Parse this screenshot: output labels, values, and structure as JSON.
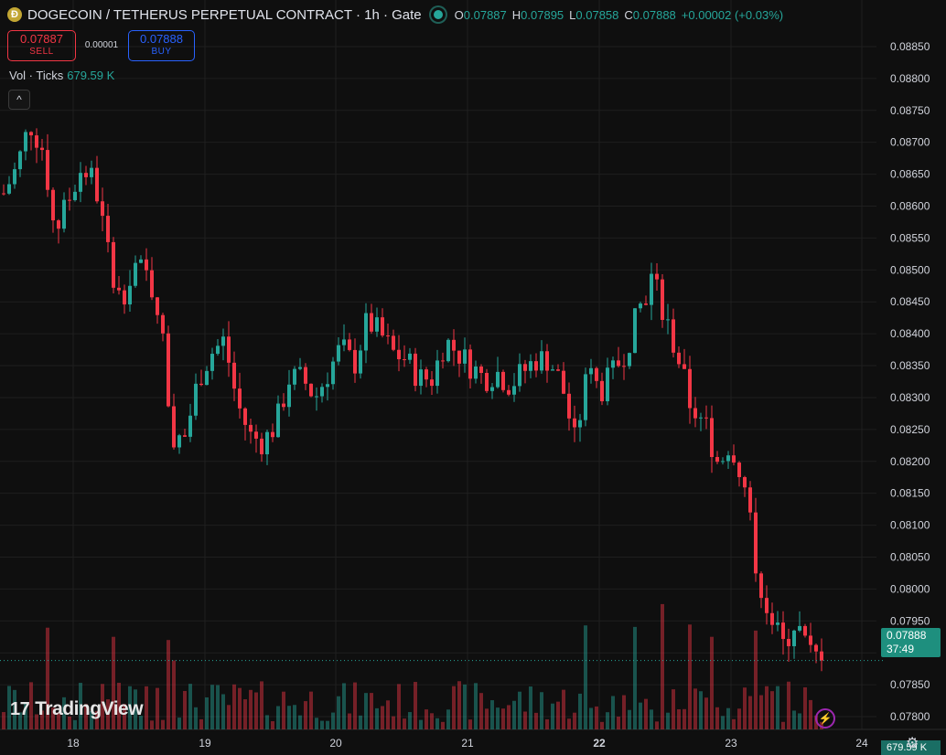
{
  "header": {
    "coin_icon": "Ð",
    "title": "DOGECOIN / TETHERUS PERPETUAL CONTRACT · 1h · Gate",
    "status": "live-dot",
    "ohlc": {
      "o_label": "O",
      "o": "0.07887",
      "h_label": "H",
      "h": "0.07895",
      "l_label": "L",
      "l": "0.07858",
      "c_label": "C",
      "c": "0.07888",
      "change": "+0.00002 (+0.03%)"
    }
  },
  "trade": {
    "sell_price": "0.07887",
    "sell_label": "SELL",
    "spread": "0.00001",
    "buy_price": "0.07888",
    "buy_label": "BUY"
  },
  "volume_legend": {
    "label": "Vol · Ticks",
    "value": "679.59 K"
  },
  "collapse_icon": "^",
  "logo": {
    "mark": "17",
    "text": "TradingView"
  },
  "price_tag": {
    "price": "0.07888",
    "countdown": "37:49"
  },
  "volume_tag": "679.59 K",
  "colors": {
    "up": "#26a69a",
    "down": "#f23645",
    "background": "#0f0f0f",
    "grid": "#1f1f1f"
  },
  "chart_data": {
    "type": "candlestick",
    "interval": "1h",
    "y_ticks": [
      "0.08850",
      "0.08800",
      "0.08750",
      "0.08700",
      "0.08650",
      "0.08600",
      "0.08550",
      "0.08500",
      "0.08450",
      "0.08400",
      "0.08350",
      "0.08300",
      "0.08250",
      "0.08200",
      "0.08150",
      "0.08100",
      "0.08050",
      "0.08000",
      "0.07950",
      "0.07900",
      "0.07850",
      "0.07800"
    ],
    "x_ticks": [
      "18",
      "19",
      "20",
      "21",
      "22",
      "23",
      "24"
    ],
    "ylim": [
      0.0778,
      0.0888
    ],
    "last_price": 0.07888,
    "close_path": [
      [
        0,
        0.0862
      ],
      [
        2,
        0.0866
      ],
      [
        4,
        0.0873
      ],
      [
        6,
        0.0869
      ],
      [
        8,
        0.0856
      ],
      [
        10,
        0.0861
      ],
      [
        12,
        0.0866
      ],
      [
        14,
        0.0864
      ],
      [
        16,
        0.0853
      ],
      [
        18,
        0.0845
      ],
      [
        20,
        0.0851
      ],
      [
        22,
        0.0849
      ],
      [
        24,
        0.0844
      ],
      [
        26,
        0.0823
      ],
      [
        28,
        0.0824
      ],
      [
        30,
        0.0833
      ],
      [
        32,
        0.0837
      ],
      [
        34,
        0.0839
      ],
      [
        36,
        0.0829
      ],
      [
        38,
        0.0824
      ],
      [
        40,
        0.0823
      ],
      [
        42,
        0.0826
      ],
      [
        44,
        0.0833
      ],
      [
        46,
        0.0833
      ],
      [
        48,
        0.083
      ],
      [
        50,
        0.0834
      ],
      [
        52,
        0.0838
      ],
      [
        54,
        0.0835
      ],
      [
        56,
        0.0842
      ],
      [
        58,
        0.084
      ],
      [
        60,
        0.0837
      ],
      [
        62,
        0.0836
      ],
      [
        64,
        0.0833
      ],
      [
        66,
        0.0833
      ],
      [
        68,
        0.0839
      ],
      [
        70,
        0.0837
      ],
      [
        72,
        0.0835
      ],
      [
        74,
        0.0833
      ],
      [
        76,
        0.0834
      ],
      [
        78,
        0.0832
      ],
      [
        80,
        0.0834
      ],
      [
        82,
        0.0836
      ],
      [
        84,
        0.0836
      ],
      [
        86,
        0.0832
      ],
      [
        88,
        0.0823
      ],
      [
        90,
        0.0834
      ],
      [
        92,
        0.0831
      ],
      [
        94,
        0.0834
      ],
      [
        96,
        0.0838
      ],
      [
        98,
        0.0844
      ],
      [
        100,
        0.0849
      ],
      [
        102,
        0.0842
      ],
      [
        104,
        0.0836
      ],
      [
        106,
        0.0828
      ],
      [
        108,
        0.0826
      ],
      [
        110,
        0.082
      ],
      [
        112,
        0.0823
      ],
      [
        114,
        0.0817
      ],
      [
        116,
        0.0803
      ],
      [
        118,
        0.0796
      ],
      [
        120,
        0.0791
      ],
      [
        122,
        0.0795
      ],
      [
        124,
        0.079
      ],
      [
        126,
        0.0789
      ]
    ]
  }
}
